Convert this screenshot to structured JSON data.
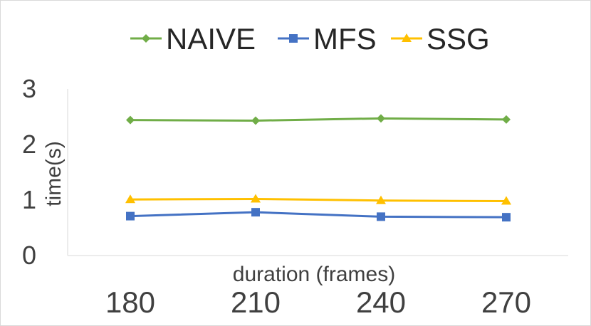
{
  "chart_data": {
    "type": "line",
    "title": "",
    "xlabel": "duration (frames)",
    "ylabel": "time(s)",
    "categories": [
      "180",
      "210",
      "240",
      "270"
    ],
    "ylim": [
      0,
      3
    ],
    "yticks": [
      "0",
      "1",
      "2",
      "3"
    ],
    "grid": false,
    "legend_position": "top",
    "series": [
      {
        "name": "NAIVE",
        "values": [
          2.44,
          2.43,
          2.47,
          2.45
        ],
        "color": "#70ad47",
        "marker": "diamond"
      },
      {
        "name": "MFS",
        "values": [
          0.71,
          0.78,
          0.7,
          0.69
        ],
        "color": "#4472c4",
        "marker": "square"
      },
      {
        "name": "SSG",
        "values": [
          1.01,
          1.02,
          0.99,
          0.98
        ],
        "color": "#ffc000",
        "marker": "triangle"
      }
    ]
  }
}
